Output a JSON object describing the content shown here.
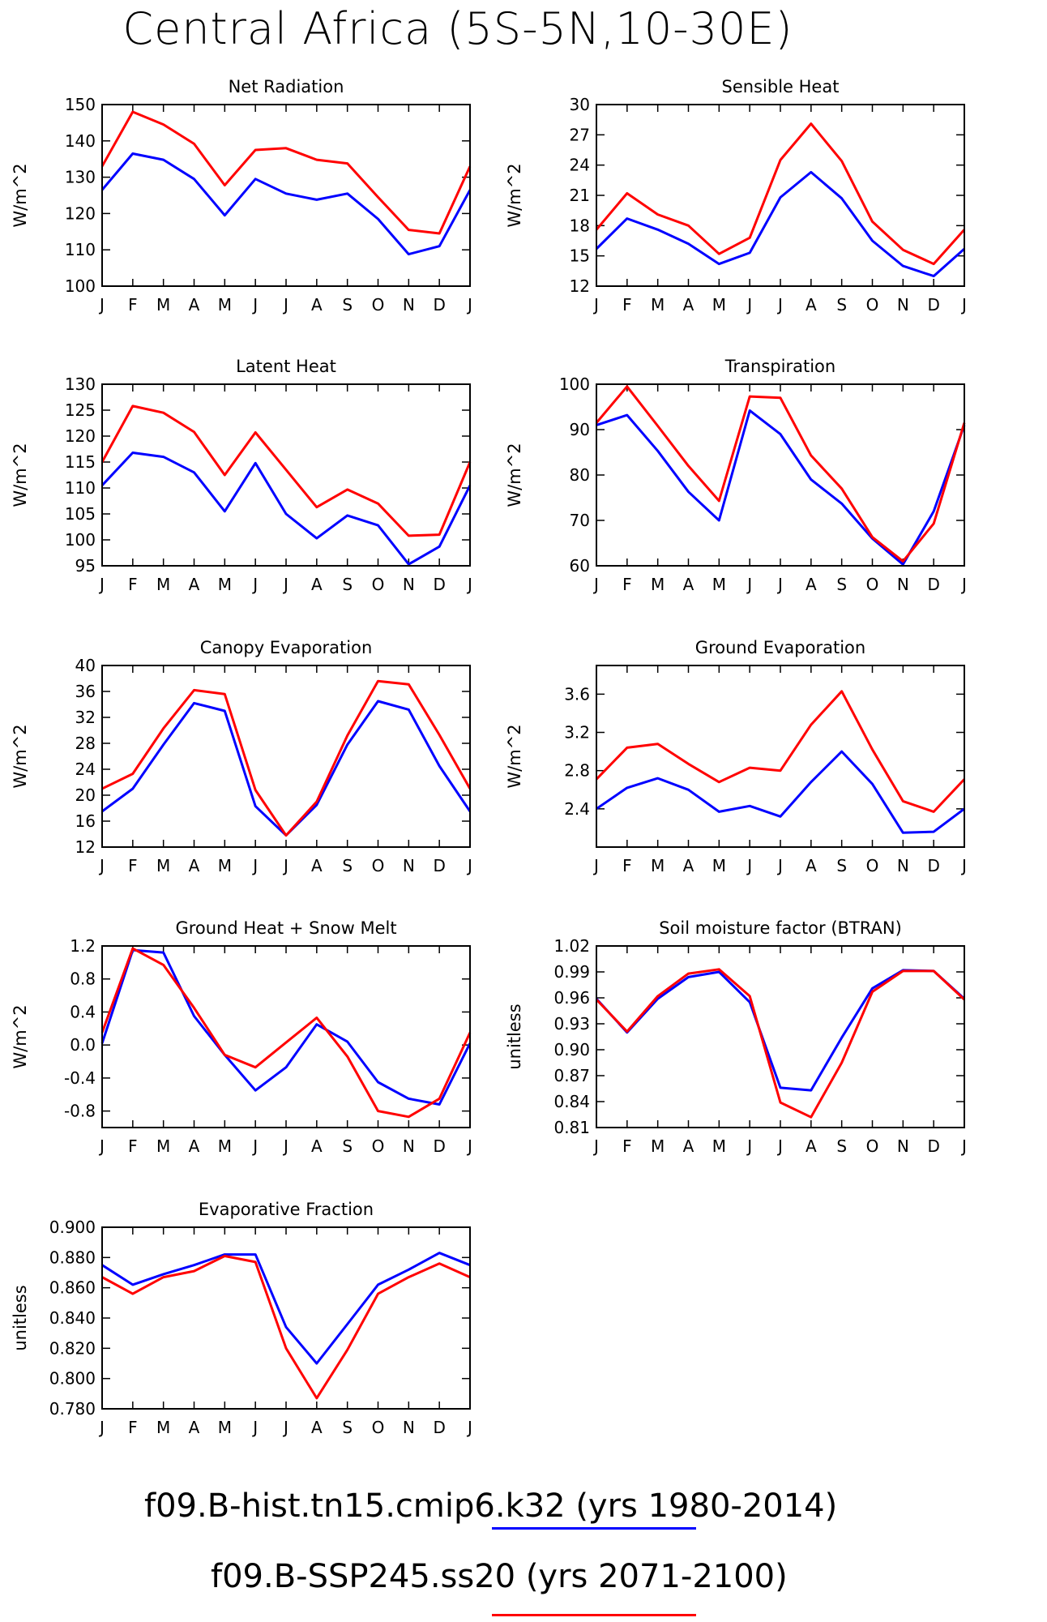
{
  "title": "Central Africa (5S-5N,10-30E)",
  "month_ticks": [
    "J",
    "F",
    "M",
    "A",
    "M",
    "J",
    "J",
    "A",
    "S",
    "O",
    "N",
    "D",
    "J"
  ],
  "colors": {
    "hist": "#0000ff",
    "ssp": "#ff0000",
    "axes": "#000000"
  },
  "legend": [
    {
      "label": "f09.B-hist.tn15.cmip6.k32 (yrs 1980-2014)",
      "color": "#0000ff"
    },
    {
      "label": "f09.B-SSP245.ss20 (yrs 2071-2100)",
      "color": "#ff0000"
    }
  ],
  "chart_data": [
    {
      "type": "line",
      "title": "Net Radiation",
      "ylabel": "W/m^2",
      "ylim": [
        100,
        150
      ],
      "yticks": [
        100,
        110,
        120,
        130,
        140,
        150
      ],
      "ytick_labels": [
        "100",
        "110",
        "120",
        "130",
        "140",
        "150"
      ],
      "x": [
        "J",
        "F",
        "M",
        "A",
        "M",
        "J",
        "J",
        "A",
        "S",
        "O",
        "N",
        "D",
        "J"
      ],
      "series": [
        {
          "color": "#0000ff",
          "values": [
            126.5,
            136.5,
            134.8,
            129.5,
            119.5,
            129.5,
            125.5,
            123.8,
            125.5,
            118.5,
            108.8,
            111,
            126.5
          ]
        },
        {
          "color": "#ff0000",
          "values": [
            133,
            148,
            144.5,
            139.2,
            127.8,
            137.5,
            138,
            134.8,
            133.8,
            124.5,
            115.5,
            114.5,
            133
          ]
        }
      ]
    },
    {
      "type": "line",
      "title": "Sensible Heat",
      "ylabel": "W/m^2",
      "ylim": [
        12,
        30
      ],
      "yticks": [
        12,
        15,
        18,
        21,
        24,
        27,
        30
      ],
      "ytick_labels": [
        "12",
        "15",
        "18",
        "21",
        "24",
        "27",
        "30"
      ],
      "x": [
        "J",
        "F",
        "M",
        "A",
        "M",
        "J",
        "J",
        "A",
        "S",
        "O",
        "N",
        "D",
        "J"
      ],
      "series": [
        {
          "color": "#0000ff",
          "values": [
            15.7,
            18.7,
            17.6,
            16.2,
            14.2,
            15.3,
            20.8,
            23.3,
            20.7,
            16.5,
            14,
            13,
            15.7
          ]
        },
        {
          "color": "#ff0000",
          "values": [
            17.6,
            21.2,
            19.1,
            18,
            15.2,
            16.8,
            24.5,
            28.1,
            24.4,
            18.4,
            15.6,
            14.2,
            17.6
          ]
        }
      ]
    },
    {
      "type": "line",
      "title": "Latent Heat",
      "ylabel": "W/m^2",
      "ylim": [
        95,
        130
      ],
      "yticks": [
        95,
        100,
        105,
        110,
        115,
        120,
        125,
        130
      ],
      "ytick_labels": [
        "95",
        "100",
        "105",
        "110",
        "115",
        "120",
        "125",
        "130"
      ],
      "x": [
        "J",
        "F",
        "M",
        "A",
        "M",
        "J",
        "J",
        "A",
        "S",
        "O",
        "N",
        "D",
        "J"
      ],
      "series": [
        {
          "color": "#0000ff",
          "values": [
            110.5,
            116.8,
            116,
            113,
            105.5,
            114.8,
            105,
            100.3,
            104.7,
            102.8,
            95.3,
            98.7,
            110.5
          ]
        },
        {
          "color": "#ff0000",
          "values": [
            115,
            125.8,
            124.5,
            120.8,
            112.5,
            120.7,
            113.5,
            106.3,
            109.7,
            107,
            100.8,
            101,
            115
          ]
        }
      ]
    },
    {
      "type": "line",
      "title": "Transpiration",
      "ylabel": "W/m^2",
      "ylim": [
        60,
        100
      ],
      "yticks": [
        60,
        70,
        80,
        90,
        100
      ],
      "ytick_labels": [
        "60",
        "70",
        "80",
        "90",
        "100"
      ],
      "x": [
        "J",
        "F",
        "M",
        "A",
        "M",
        "J",
        "J",
        "A",
        "S",
        "O",
        "N",
        "D",
        "J"
      ],
      "series": [
        {
          "color": "#0000ff",
          "values": [
            91,
            93.2,
            85.3,
            76.3,
            70,
            94.2,
            89,
            79,
            73.7,
            66,
            60.3,
            72,
            91
          ]
        },
        {
          "color": "#ff0000",
          "values": [
            91.5,
            99.5,
            90.8,
            82,
            74.3,
            97.3,
            97,
            84.3,
            77,
            66.3,
            61,
            69.3,
            91.5
          ]
        }
      ]
    },
    {
      "type": "line",
      "title": "Canopy Evaporation",
      "ylabel": "W/m^2",
      "ylim": [
        12,
        40
      ],
      "yticks": [
        12,
        16,
        20,
        24,
        28,
        32,
        36,
        40
      ],
      "ytick_labels": [
        "12",
        "16",
        "20",
        "24",
        "28",
        "32",
        "36",
        "40"
      ],
      "x": [
        "J",
        "F",
        "M",
        "A",
        "M",
        "J",
        "J",
        "A",
        "S",
        "O",
        "N",
        "D",
        "J"
      ],
      "series": [
        {
          "color": "#0000ff",
          "values": [
            17.5,
            21,
            27.8,
            34.2,
            33,
            18.3,
            13.8,
            18.5,
            27.8,
            34.5,
            33.2,
            24.5,
            17.5
          ]
        },
        {
          "color": "#ff0000",
          "values": [
            21,
            23.3,
            30.3,
            36.2,
            35.6,
            20.8,
            13.8,
            19,
            29.2,
            37.6,
            37.1,
            29.3,
            21
          ]
        }
      ]
    },
    {
      "type": "line",
      "title": "Ground Evaporation",
      "ylabel": "W/m^2",
      "ylim": [
        2.0,
        3.9
      ],
      "yticks": [
        2.4,
        2.8,
        3.2,
        3.6
      ],
      "ytick_labels": [
        "2.4",
        "2.8",
        "3.2",
        "3.6"
      ],
      "x": [
        "J",
        "F",
        "M",
        "A",
        "M",
        "J",
        "J",
        "A",
        "S",
        "O",
        "N",
        "D",
        "J"
      ],
      "series": [
        {
          "color": "#0000ff",
          "values": [
            2.4,
            2.62,
            2.72,
            2.6,
            2.37,
            2.43,
            2.32,
            2.68,
            3.0,
            2.66,
            2.15,
            2.16,
            2.4
          ]
        },
        {
          "color": "#ff0000",
          "values": [
            2.71,
            3.04,
            3.08,
            2.87,
            2.68,
            2.83,
            2.8,
            3.28,
            3.63,
            3.02,
            2.48,
            2.37,
            2.71
          ]
        }
      ]
    },
    {
      "type": "line",
      "title": "Ground Heat + Snow Melt",
      "ylabel": "W/m^2",
      "ylim": [
        -1.0,
        1.2
      ],
      "yticks": [
        -0.8,
        -0.4,
        0.0,
        0.4,
        0.8,
        1.2
      ],
      "ytick_labels": [
        "-0.8",
        "-0.4",
        "0.0",
        "0.4",
        "0.8",
        "1.2"
      ],
      "x": [
        "J",
        "F",
        "M",
        "A",
        "M",
        "J",
        "J",
        "A",
        "S",
        "O",
        "N",
        "D",
        "J"
      ],
      "series": [
        {
          "color": "#0000ff",
          "values": [
            0.02,
            1.15,
            1.12,
            0.35,
            -0.12,
            -0.55,
            -0.27,
            0.25,
            0.04,
            -0.45,
            -0.65,
            -0.72,
            0.02
          ]
        },
        {
          "color": "#ff0000",
          "values": [
            0.15,
            1.17,
            0.97,
            0.45,
            -0.12,
            -0.27,
            0.03,
            0.33,
            -0.14,
            -0.8,
            -0.87,
            -0.65,
            0.15
          ]
        }
      ]
    },
    {
      "type": "line",
      "title": "Soil moisture factor (BTRAN)",
      "ylabel": "unitless",
      "ylim": [
        0.81,
        1.02
      ],
      "yticks": [
        0.81,
        0.84,
        0.87,
        0.9,
        0.93,
        0.96,
        0.99,
        1.02
      ],
      "ytick_labels": [
        "0.81",
        "0.84",
        "0.87",
        "0.90",
        "0.93",
        "0.96",
        "0.99",
        "1.02"
      ],
      "x": [
        "J",
        "F",
        "M",
        "A",
        "M",
        "J",
        "J",
        "A",
        "S",
        "O",
        "N",
        "D",
        "J"
      ],
      "series": [
        {
          "color": "#0000ff",
          "values": [
            0.959,
            0.92,
            0.959,
            0.984,
            0.99,
            0.955,
            0.856,
            0.853,
            0.914,
            0.971,
            0.992,
            0.991,
            0.959
          ]
        },
        {
          "color": "#ff0000",
          "values": [
            0.958,
            0.921,
            0.962,
            0.988,
            0.993,
            0.962,
            0.839,
            0.822,
            0.885,
            0.967,
            0.991,
            0.991,
            0.958
          ]
        }
      ]
    },
    {
      "type": "line",
      "title": "Evaporative Fraction",
      "ylabel": "unitless",
      "ylim": [
        0.78,
        0.9
      ],
      "yticks": [
        0.78,
        0.8,
        0.82,
        0.84,
        0.86,
        0.88,
        0.9
      ],
      "ytick_labels": [
        "0.780",
        "0.800",
        "0.820",
        "0.840",
        "0.860",
        "0.880",
        "0.900"
      ],
      "x": [
        "J",
        "F",
        "M",
        "A",
        "M",
        "J",
        "J",
        "A",
        "S",
        "O",
        "N",
        "D",
        "J"
      ],
      "series": [
        {
          "color": "#0000ff",
          "values": [
            0.875,
            0.862,
            0.869,
            0.875,
            0.882,
            0.882,
            0.834,
            0.81,
            0.836,
            0.862,
            0.872,
            0.883,
            0.875
          ]
        },
        {
          "color": "#ff0000",
          "values": [
            0.867,
            0.856,
            0.867,
            0.871,
            0.881,
            0.877,
            0.82,
            0.787,
            0.819,
            0.856,
            0.867,
            0.876,
            0.867
          ]
        }
      ]
    }
  ]
}
